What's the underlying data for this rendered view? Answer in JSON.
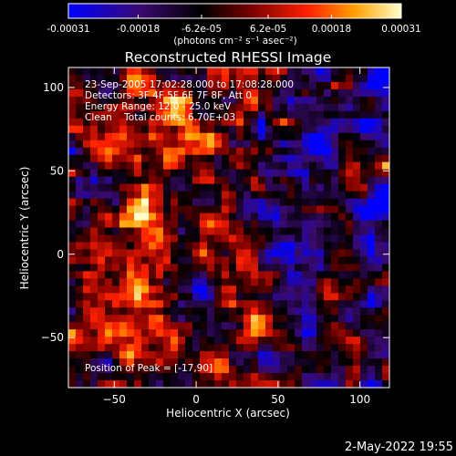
{
  "colorbar": {
    "ticks": [
      "-0.00031",
      "-0.00018",
      "-6.2e-05",
      "6.2e-05",
      "0.00018",
      "0.00031"
    ],
    "tick_values": [
      -0.00031,
      -0.00018,
      -6.2e-05,
      6.2e-05,
      0.00018,
      0.00031
    ],
    "range": [
      -0.00031,
      0.00031
    ],
    "unit_label": "(photons cm⁻² s⁻¹ asec⁻²)"
  },
  "chart_data": {
    "type": "heatmap",
    "title": "Reconstructed RHESSI Image",
    "xlabel": "Heliocentric X (arcsec)",
    "ylabel": "Heliocentric Y (arcsec)",
    "xlim": [
      -78,
      118
    ],
    "ylim": [
      -80,
      112
    ],
    "xticks": [
      -50,
      0,
      50,
      100
    ],
    "yticks": [
      -50,
      0,
      50,
      100
    ],
    "annotations": [
      "23-Sep-2005 17:02:28.000 to 17:08:28.000",
      "Detectors: 3F 4F 5F 6F 7F 8F, Att 0",
      "Energy Range: 12.0 - 25.0 keV",
      "Clean    Total counts: 6.70E+03"
    ],
    "peak_label": "Position of Peak = [-17,90]",
    "peak": [
      -17,
      90
    ]
  },
  "footer": {
    "date": "2-May-2022 19:55"
  },
  "colors": {
    "stops": [
      "#0000ff",
      "#3a0a6e",
      "#000000",
      "#7a0000",
      "#ff2000",
      "#ffa000",
      "#ffffcc"
    ]
  }
}
